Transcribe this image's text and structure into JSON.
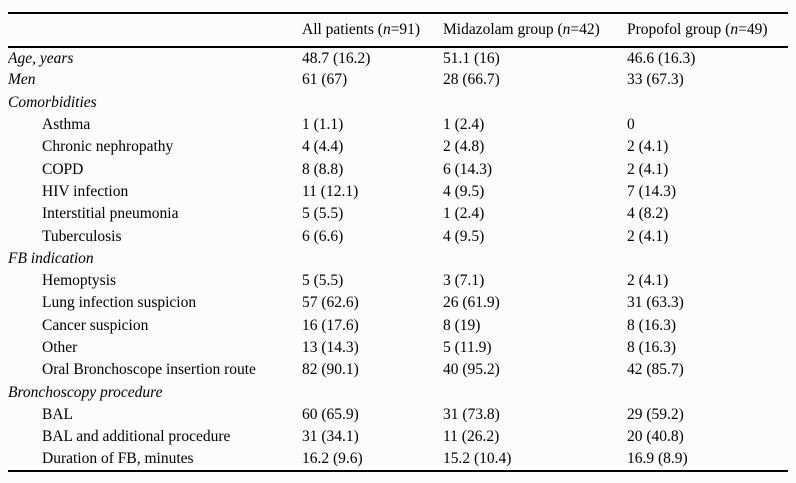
{
  "colors": {
    "background": "#fcfcfc",
    "text": "#000000",
    "rule": "#000000"
  },
  "table": {
    "columns": [
      {
        "prefix": "",
        "n": "",
        "suffix": ""
      },
      {
        "prefix": "All patients (",
        "n": "n",
        "suffix": "=91)"
      },
      {
        "prefix": "Midazolam group (",
        "n": "n",
        "suffix": "=42)"
      },
      {
        "prefix": "Propofol group (",
        "n": "n",
        "suffix": "=49)"
      }
    ],
    "rows": [
      {
        "label": "Age, years",
        "style": "italic",
        "values": [
          "48.7 (16.2)",
          "51.1 (16)",
          "46.6 (16.3)"
        ]
      },
      {
        "label": "Men",
        "style": "italic",
        "values": [
          "61 (67)",
          "28 (66.7)",
          "33 (67.3)"
        ]
      },
      {
        "label": "Comorbidities",
        "style": "italic",
        "values": [
          "",
          "",
          ""
        ]
      },
      {
        "label": "Asthma",
        "style": "indent",
        "values": [
          "1 (1.1)",
          "1 (2.4)",
          "0"
        ]
      },
      {
        "label": "Chronic nephropathy",
        "style": "indent",
        "values": [
          "4 (4.4)",
          "2 (4.8)",
          "2 (4.1)"
        ]
      },
      {
        "label": "COPD",
        "style": "indent",
        "values": [
          "8 (8.8)",
          "6 (14.3)",
          "2 (4.1)"
        ]
      },
      {
        "label": "HIV infection",
        "style": "indent",
        "values": [
          "11 (12.1)",
          "4 (9.5)",
          "7 (14.3)"
        ]
      },
      {
        "label": "Interstitial pneumonia",
        "style": "indent",
        "values": [
          "5 (5.5)",
          "1 (2.4)",
          "4 (8.2)"
        ]
      },
      {
        "label": "Tuberculosis",
        "style": "indent",
        "values": [
          "6 (6.6)",
          "4 (9.5)",
          "2 (4.1)"
        ]
      },
      {
        "label": "FB indication",
        "style": "italic",
        "values": [
          "",
          "",
          ""
        ]
      },
      {
        "label": "Hemoptysis",
        "style": "indent",
        "values": [
          "5 (5.5)",
          "3 (7.1)",
          "2 (4.1)"
        ]
      },
      {
        "label": "Lung infection suspicion",
        "style": "indent",
        "values": [
          "57 (62.6)",
          "26 (61.9)",
          "31 (63.3)"
        ]
      },
      {
        "label": "Cancer suspicion",
        "style": "indent",
        "values": [
          "16 (17.6)",
          "8 (19)",
          "8 (16.3)"
        ]
      },
      {
        "label": "Other",
        "style": "indent",
        "values": [
          "13 (14.3)",
          "5 (11.9)",
          "8 (16.3)"
        ]
      },
      {
        "label": "Oral Bronchoscope insertion route",
        "style": "indent",
        "values": [
          "82 (90.1)",
          "40 (95.2)",
          "42 (85.7)"
        ]
      },
      {
        "label": "Bronchoscopy procedure",
        "style": "italic",
        "values": [
          "",
          "",
          ""
        ]
      },
      {
        "label": "BAL",
        "style": "indent",
        "values": [
          "60 (65.9)",
          "31 (73.8)",
          "29 (59.2)"
        ]
      },
      {
        "label": "BAL and additional procedure",
        "style": "indent",
        "values": [
          "31 (34.1)",
          "11 (26.2)",
          "20 (40.8)"
        ]
      },
      {
        "label": "Duration of FB, minutes",
        "style": "indent",
        "values": [
          "16.2 (9.6)",
          "15.2 (10.4)",
          "16.9 (8.9)"
        ]
      }
    ]
  },
  "chart_data": {
    "type": "table",
    "columns": [
      "",
      "All patients (n=91)",
      "Midazolam group (n=42)",
      "Propofol group (n=49)"
    ],
    "rows": [
      [
        "Age, years",
        "48.7 (16.2)",
        "51.1 (16)",
        "46.6 (16.3)"
      ],
      [
        "Men",
        "61 (67)",
        "28 (66.7)",
        "33 (67.3)"
      ],
      [
        "Comorbidities",
        "",
        "",
        ""
      ],
      [
        "Asthma",
        "1 (1.1)",
        "1 (2.4)",
        "0"
      ],
      [
        "Chronic nephropathy",
        "4 (4.4)",
        "2 (4.8)",
        "2 (4.1)"
      ],
      [
        "COPD",
        "8 (8.8)",
        "6 (14.3)",
        "2 (4.1)"
      ],
      [
        "HIV infection",
        "11 (12.1)",
        "4 (9.5)",
        "7 (14.3)"
      ],
      [
        "Interstitial pneumonia",
        "5 (5.5)",
        "1 (2.4)",
        "4 (8.2)"
      ],
      [
        "Tuberculosis",
        "6 (6.6)",
        "4 (9.5)",
        "2 (4.1)"
      ],
      [
        "FB indication",
        "",
        "",
        ""
      ],
      [
        "Hemoptysis",
        "5 (5.5)",
        "3 (7.1)",
        "2 (4.1)"
      ],
      [
        "Lung infection suspicion",
        "57 (62.6)",
        "26 (61.9)",
        "31 (63.3)"
      ],
      [
        "Cancer suspicion",
        "16 (17.6)",
        "8 (19)",
        "8 (16.3)"
      ],
      [
        "Other",
        "13 (14.3)",
        "5 (11.9)",
        "8 (16.3)"
      ],
      [
        "Oral Bronchoscope insertion route",
        "82 (90.1)",
        "40 (95.2)",
        "42 (85.7)"
      ],
      [
        "Bronchoscopy procedure",
        "",
        "",
        ""
      ],
      [
        "BAL",
        "60 (65.9)",
        "31 (73.8)",
        "29 (59.2)"
      ],
      [
        "BAL and additional procedure",
        "31 (34.1)",
        "11 (26.2)",
        "20 (40.8)"
      ],
      [
        "Duration of FB, minutes",
        "16.2 (9.6)",
        "15.2 (10.4)",
        "16.9 (8.9)"
      ]
    ]
  }
}
